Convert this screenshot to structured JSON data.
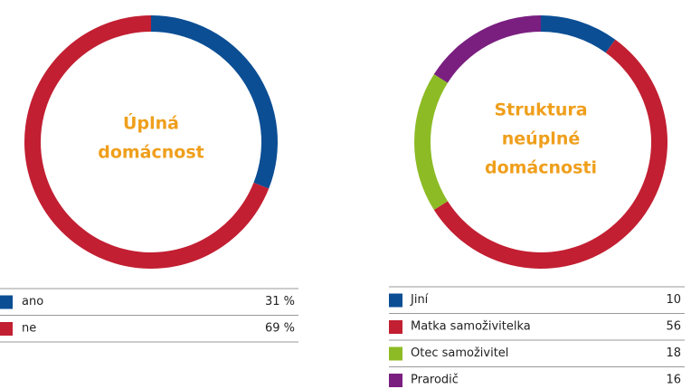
{
  "chart_data": [
    {
      "type": "donut",
      "title_lines": [
        "Úplná",
        "domácnost"
      ],
      "categories": [
        "ano",
        "ne"
      ],
      "values": [
        31,
        69
      ],
      "value_labels": [
        "31 %",
        "69 %"
      ],
      "colors": [
        "#0b4e94",
        "#c21f32"
      ]
    },
    {
      "type": "donut",
      "title_lines": [
        "Struktura",
        "neúplné",
        "domácnosti"
      ],
      "categories": [
        "Jiní",
        "Matka samoživitelka",
        "Otec samoživitel",
        "Prarodič"
      ],
      "values": [
        10,
        56,
        18,
        16
      ],
      "colors": [
        "#0b4e94",
        "#c21f32",
        "#8dbb25",
        "#7a1f80"
      ]
    }
  ]
}
